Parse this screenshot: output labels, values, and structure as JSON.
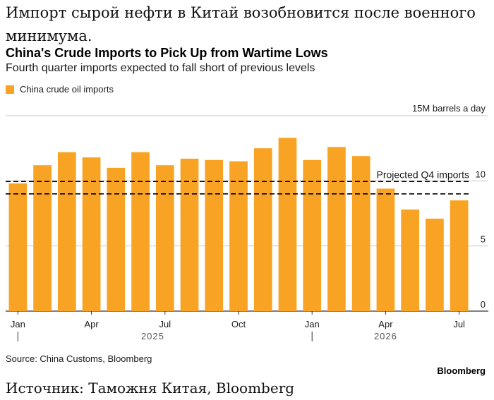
{
  "ru_title": "Импорт сырой нефти в Китай возобновится после военного минимума.",
  "ru_source": "Источник: Таможня Китая, Bloomberg",
  "source": "Source: China Customs, Bloomberg",
  "brand": "Bloomberg",
  "colors": {
    "bar": "#F9A324",
    "grid": "#c8c8c8",
    "axis": "#333333",
    "text": "#1a1a1a"
  },
  "chart_data": {
    "type": "bar",
    "title": "China's Crude Imports to Pick Up from Wartime Lows",
    "subtitle": "Fourth quarter imports expected to fall short of previous levels",
    "ylabel": "15M barrels a day",
    "legend": "China crude oil imports",
    "ylim": [
      0,
      15
    ],
    "yticks": [
      0,
      5,
      10
    ],
    "categories": [
      "2025-01",
      "2025-02",
      "2025-03",
      "2025-04",
      "2025-05",
      "2025-06",
      "2025-07",
      "2025-08",
      "2025-09",
      "2025-10",
      "2025-11",
      "2025-12",
      "2026-01",
      "2026-02",
      "2026-03",
      "2026-04",
      "2026-05",
      "2026-06",
      "2026-07"
    ],
    "series": [
      {
        "name": "China crude oil imports",
        "values": [
          9.8,
          11.2,
          12.2,
          11.8,
          11.0,
          12.2,
          11.2,
          11.7,
          11.6,
          11.5,
          12.5,
          13.3,
          11.6,
          12.6,
          11.9,
          9.4,
          7.8,
          7.1,
          8.5
        ]
      }
    ],
    "xtick_labels": [
      {
        "index": 0,
        "label": "Jan"
      },
      {
        "index": 3,
        "label": "Apr"
      },
      {
        "index": 6,
        "label": "Jul"
      },
      {
        "index": 9,
        "label": "Oct"
      },
      {
        "index": 12,
        "label": "Jan"
      },
      {
        "index": 15,
        "label": "Apr"
      },
      {
        "index": 18,
        "label": "Jul"
      }
    ],
    "year_labels": [
      {
        "label": "2025",
        "start_index": 0
      },
      {
        "label": "2026",
        "start_index": 12
      }
    ],
    "reference_band": {
      "label": "Projected Q4 imports",
      "low": 9.0,
      "high": 9.95,
      "style": "dashed"
    },
    "grid": true,
    "legend_position": "top-left"
  }
}
